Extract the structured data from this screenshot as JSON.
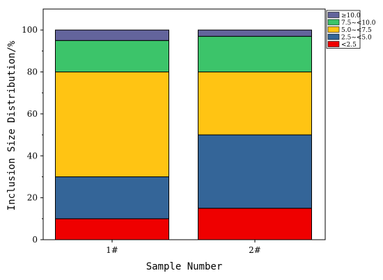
{
  "chart_data": {
    "type": "bar",
    "stacked": true,
    "categories": [
      "1#",
      "2#"
    ],
    "series": [
      {
        "name": "<2.5",
        "color": "#ef0000",
        "values": [
          10,
          15
        ]
      },
      {
        "name": "2.5~<5.0",
        "color": "#346598",
        "values": [
          20,
          35
        ]
      },
      {
        "name": "5.0~<7.5",
        "color": "#ffc413",
        "values": [
          50,
          30
        ]
      },
      {
        "name": "7.5~<10.0",
        "color": "#3cc46a",
        "values": [
          15,
          17
        ]
      },
      {
        "name": "≥10.0",
        "color": "#63649c",
        "values": [
          5,
          3
        ]
      }
    ],
    "xlabel": "Sample Number",
    "ylabel": "Inclusion Size Distribution/%",
    "ylim": [
      0,
      110
    ],
    "yticks": [
      0,
      20,
      40,
      60,
      80,
      100
    ],
    "legend_position": "top-right",
    "grid": false
  }
}
